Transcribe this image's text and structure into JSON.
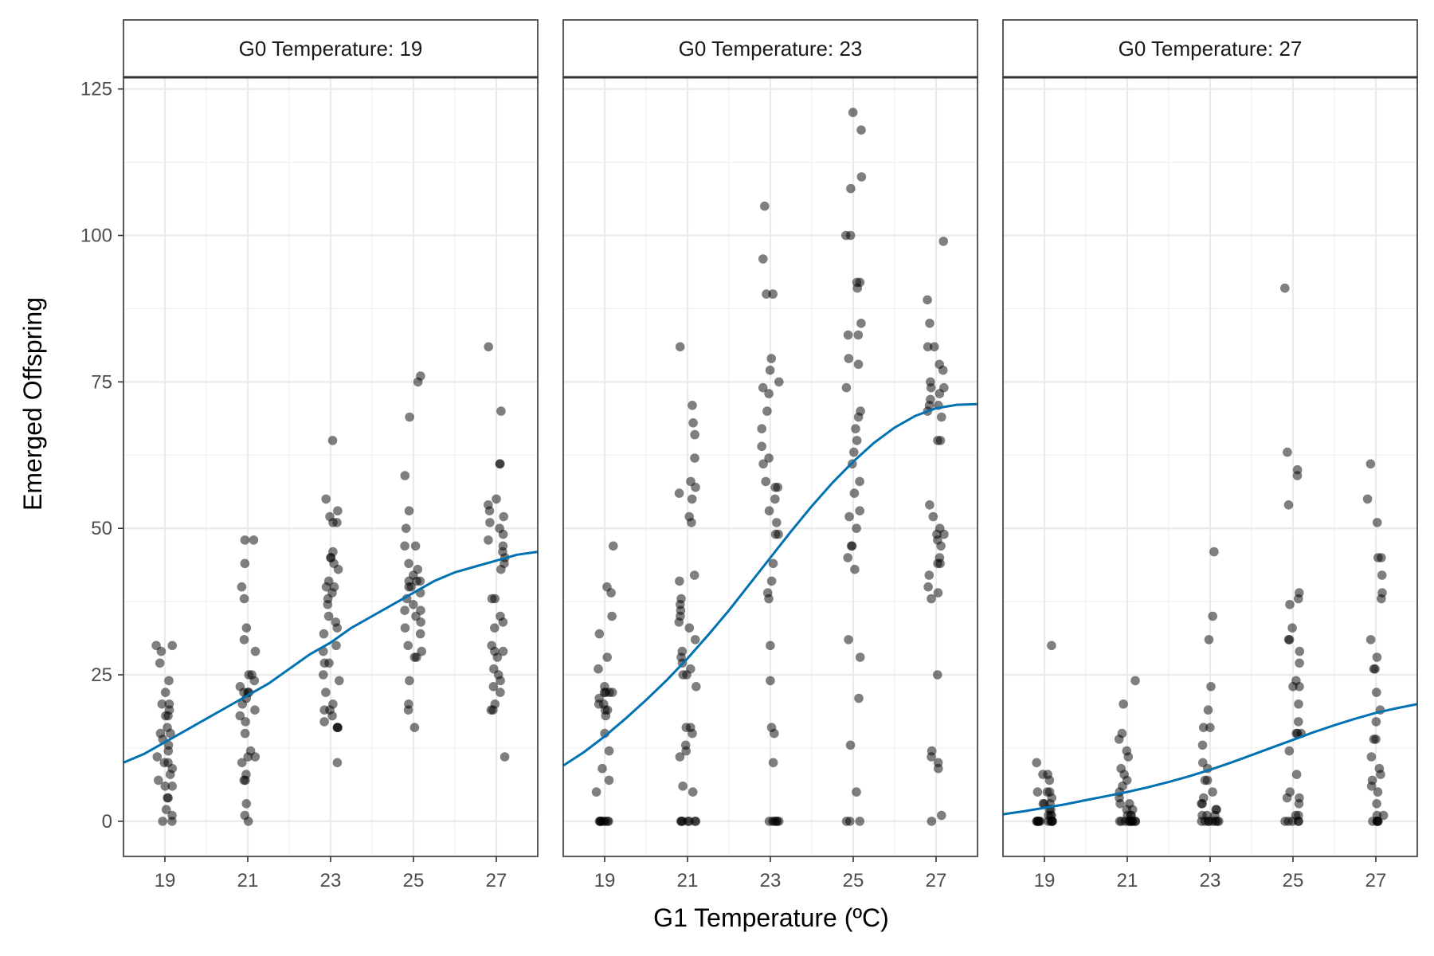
{
  "chart_data": {
    "type": "scatter",
    "xlabel": "G1 Temperature (ºC)",
    "ylabel": "Emerged Offspring",
    "xlim": [
      18,
      28
    ],
    "ylim": [
      -6,
      127
    ],
    "x_ticks": [
      19,
      21,
      23,
      25,
      27
    ],
    "x_tick_labels": [
      "19",
      "21",
      "23",
      "25",
      "27"
    ],
    "y_ticks": [
      0,
      25,
      50,
      75,
      100,
      125
    ],
    "y_tick_labels": [
      "0",
      "25",
      "50",
      "75",
      "100",
      "125"
    ],
    "grid": true,
    "point_color": "#000000",
    "point_opacity": 0.5,
    "fit_line_color": "#0072B2",
    "panels": [
      {
        "facet_label": "G0 Temperature: 19",
        "points": {
          "19": [
            30,
            30,
            29,
            27,
            24,
            22,
            20,
            20,
            19,
            18,
            18,
            16,
            15,
            15,
            14,
            13,
            12,
            11,
            10,
            10,
            9,
            8,
            7,
            6,
            6,
            4,
            4,
            2,
            1,
            0,
            0
          ],
          "21": [
            48,
            48,
            44,
            40,
            38,
            33,
            31,
            29,
            25,
            25,
            24,
            23,
            22,
            22,
            22,
            21,
            20,
            19,
            18,
            17,
            15,
            12,
            11,
            11,
            10,
            8,
            7,
            7,
            3,
            1,
            0
          ],
          "23": [
            65,
            55,
            53,
            52,
            51,
            51,
            46,
            45,
            45,
            44,
            43,
            41,
            40,
            40,
            39,
            38,
            37,
            35,
            34,
            33,
            32,
            30,
            29,
            27,
            27,
            25,
            24,
            22,
            20,
            19,
            19,
            18,
            17,
            16,
            16,
            16,
            10
          ],
          "25": [
            76,
            75,
            69,
            59,
            53,
            50,
            47,
            47,
            44,
            43,
            42,
            41,
            41,
            41,
            40,
            40,
            39,
            38,
            37,
            36,
            36,
            35,
            34,
            33,
            32,
            30,
            29,
            28,
            28,
            24,
            20,
            19,
            16
          ],
          "27": [
            81,
            70,
            61,
            61,
            55,
            54,
            53,
            52,
            51,
            50,
            49,
            48,
            47,
            46,
            45,
            44,
            43,
            38,
            38,
            35,
            34,
            33,
            30,
            29,
            29,
            28,
            26,
            25,
            24,
            23,
            22,
            20,
            19,
            19,
            11
          ]
        },
        "fit": {
          "x": [
            18,
            18.5,
            19,
            19.5,
            20,
            20.5,
            21,
            21.5,
            22,
            22.5,
            23,
            23.5,
            24,
            24.5,
            25,
            25.5,
            26,
            26.5,
            27,
            27.5,
            28
          ],
          "y": [
            10,
            11.5,
            13.5,
            15.5,
            17.5,
            19.5,
            21.5,
            23.5,
            26,
            28.5,
            30.5,
            33,
            35,
            37,
            39,
            41,
            42.5,
            43.5,
            44.5,
            45.5,
            46
          ]
        }
      },
      {
        "facet_label": "G0 Temperature: 23",
        "points": {
          "19": [
            47,
            40,
            39,
            35,
            32,
            28,
            26,
            23,
            22,
            22,
            22,
            22,
            21,
            20,
            20,
            19,
            19,
            18,
            15,
            12,
            9,
            7,
            5,
            0,
            0,
            0,
            0,
            0,
            0,
            0,
            0
          ],
          "21": [
            81,
            71,
            68,
            66,
            62,
            58,
            57,
            56,
            55,
            52,
            51,
            42,
            41,
            38,
            37,
            36,
            35,
            34,
            33,
            31,
            29,
            28,
            27,
            26,
            25,
            25,
            23,
            16,
            16,
            15,
            13,
            12,
            11,
            6,
            5,
            0,
            0,
            0,
            0,
            0,
            0,
            0
          ],
          "23": [
            105,
            96,
            90,
            90,
            79,
            77,
            75,
            74,
            73,
            70,
            67,
            64,
            62,
            61,
            58,
            57,
            57,
            55,
            53,
            51,
            49,
            49,
            44,
            41,
            39,
            38,
            30,
            24,
            16,
            15,
            10,
            0,
            0,
            0,
            0,
            0,
            0
          ],
          "25": [
            121,
            118,
            110,
            108,
            100,
            100,
            92,
            92,
            91,
            85,
            83,
            83,
            79,
            78,
            74,
            70,
            69,
            67,
            65,
            63,
            61,
            58,
            56,
            53,
            52,
            50,
            47,
            47,
            45,
            43,
            31,
            28,
            21,
            13,
            5,
            0,
            0,
            0
          ],
          "27": [
            99,
            89,
            85,
            81,
            81,
            78,
            77,
            75,
            74,
            74,
            73,
            72,
            71,
            71,
            70,
            69,
            65,
            65,
            54,
            52,
            50,
            49,
            49,
            48,
            47,
            45,
            44,
            44,
            42,
            40,
            39,
            38,
            25,
            12,
            11,
            10,
            9,
            1,
            0
          ]
        },
        "fit": {
          "x": [
            18,
            18.5,
            19,
            19.5,
            20,
            20.5,
            21,
            21.5,
            22,
            22.5,
            23,
            23.5,
            24,
            24.5,
            25,
            25.5,
            26,
            26.5,
            27,
            27.5,
            28
          ],
          "y": [
            9.5,
            11.8,
            14.5,
            17.5,
            20.7,
            24.1,
            27.8,
            31.8,
            36,
            40.5,
            45,
            49.5,
            53.8,
            57.8,
            61.4,
            64.6,
            67.2,
            69.2,
            70.5,
            71.1,
            71.2
          ]
        }
      },
      {
        "facet_label": "G0 Temperature: 27",
        "points": {
          "19": [
            30,
            10,
            8,
            8,
            7,
            5,
            5,
            5,
            4,
            3,
            3,
            3,
            2,
            2,
            1,
            1,
            1,
            0,
            0,
            0,
            0,
            0,
            0,
            0,
            0,
            0,
            0,
            0
          ],
          "21": [
            24,
            20,
            15,
            14,
            12,
            11,
            9,
            8,
            7,
            6,
            5,
            4,
            3,
            3,
            2,
            2,
            1,
            1,
            1,
            0,
            0,
            0,
            0,
            0,
            0,
            0,
            0,
            0,
            0
          ],
          "23": [
            46,
            35,
            31,
            23,
            19,
            16,
            16,
            13,
            10,
            9,
            7,
            7,
            5,
            4,
            3,
            3,
            2,
            2,
            1,
            1,
            1,
            0,
            0,
            0,
            0,
            0,
            0,
            0,
            0
          ],
          "25": [
            91,
            63,
            60,
            59,
            54,
            39,
            38,
            37,
            33,
            31,
            31,
            29,
            27,
            24,
            23,
            23,
            20,
            17,
            15,
            15,
            15,
            12,
            8,
            5,
            4,
            4,
            3,
            1,
            1,
            0,
            0,
            0,
            0,
            0
          ],
          "27": [
            61,
            55,
            51,
            45,
            45,
            42,
            39,
            38,
            31,
            28,
            26,
            26,
            22,
            19,
            17,
            14,
            14,
            11,
            9,
            8,
            7,
            6,
            5,
            3,
            1,
            1,
            0,
            0,
            0,
            0,
            0
          ]
        },
        "fit": {
          "x": [
            18,
            18.5,
            19,
            19.5,
            20,
            20.5,
            21,
            21.5,
            22,
            22.5,
            23,
            23.5,
            24,
            24.5,
            25,
            25.5,
            26,
            26.5,
            27,
            27.5,
            28
          ],
          "y": [
            1.2,
            1.7,
            2.3,
            2.9,
            3.6,
            4.3,
            5,
            5.8,
            6.7,
            7.7,
            8.8,
            10,
            11.3,
            12.6,
            13.9,
            15.2,
            16.4,
            17.5,
            18.5,
            19.3,
            20
          ]
        }
      }
    ]
  }
}
